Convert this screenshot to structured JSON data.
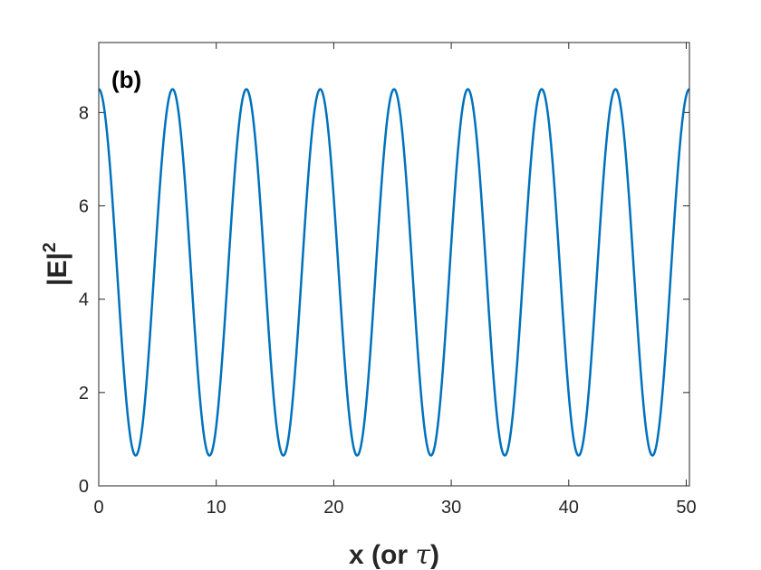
{
  "chart_data": {
    "type": "line",
    "panel_label": "(b)",
    "xlabel": "x (or τ)",
    "xlabel_main": "x (or ",
    "xlabel_symbol": "τ",
    "xlabel_close": ")",
    "ylabel": "|E|",
    "ylabel_exponent": "2",
    "xlim": [
      0,
      50.27
    ],
    "ylim": [
      0,
      9.5
    ],
    "x_ticks": [
      0,
      10,
      20,
      30,
      40,
      50
    ],
    "y_ticks": [
      0,
      2,
      4,
      6,
      8
    ],
    "x_tick_labels": [
      "0",
      "10",
      "20",
      "30",
      "40",
      "50"
    ],
    "y_tick_labels": [
      "0",
      "2",
      "4",
      "6",
      "8"
    ],
    "grid": false,
    "series": [
      {
        "color": "#0072BD",
        "function": "periodic",
        "y_max": 8.5,
        "y_min": 0.65,
        "period": 6.283,
        "x_range": [
          0,
          50.27
        ]
      }
    ]
  }
}
